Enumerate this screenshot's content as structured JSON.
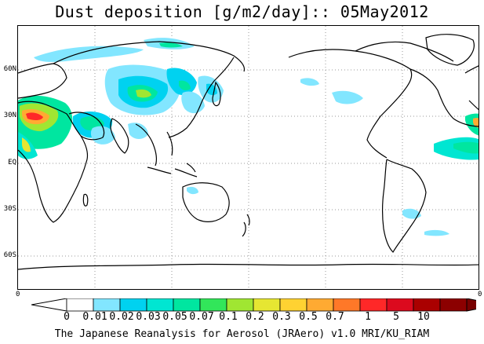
{
  "title": "Dust deposition [g/m2/day]:: 05May2012",
  "footer": "The Japanese Reanalysis for Aerosol (JRAero) v1.0 MRI/KU_RIAM",
  "map": {
    "projection": "equirectangular, Pacific-centered",
    "lat_labels": [
      "60N",
      "30N",
      "EQ",
      "30S",
      "60S"
    ],
    "edge_labels": [
      "0",
      "0"
    ],
    "gridlines": "dotted",
    "coastline_color": "#000000"
  },
  "colorbar": {
    "tick_labels": [
      "0",
      "0.01",
      "0.02",
      "0.03",
      "0.05",
      "0.07",
      "0.1",
      "0.2",
      "0.3",
      "0.5",
      "0.7",
      "1",
      "5",
      "10"
    ],
    "colors": [
      "#ffffff",
      "#82e6ff",
      "#00d2f0",
      "#00e6d2",
      "#00e6a0",
      "#32e65a",
      "#a0e632",
      "#e6e632",
      "#ffd232",
      "#ffaa32",
      "#ff7828",
      "#ff2828",
      "#dc0a1e",
      "#aa0000",
      "#8c0000"
    ],
    "under_color": "#ffffff",
    "over_color": "#780000"
  }
}
